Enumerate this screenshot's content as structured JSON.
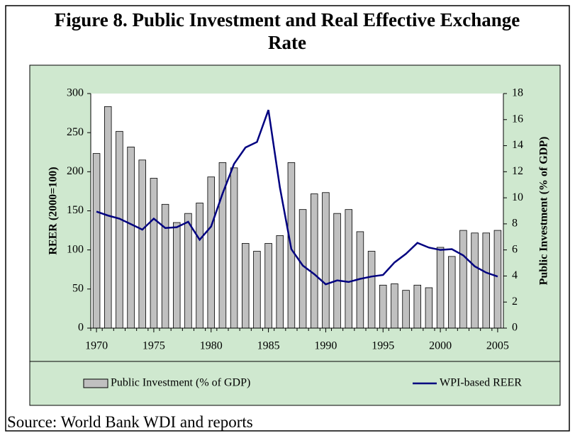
{
  "chart_data": {
    "type": "bar-line",
    "title": "Figure 8. Public Investment and Real Effective Exchange Rate",
    "ylabel": "REER (2000=100)",
    "y2label": "Public Investment (% of GDP)",
    "source": "Source: World Bank WDI and reports",
    "x": [
      1970,
      1971,
      1972,
      1973,
      1974,
      1975,
      1976,
      1977,
      1978,
      1979,
      1980,
      1981,
      1982,
      1983,
      1984,
      1985,
      1986,
      1987,
      1988,
      1989,
      1990,
      1991,
      1992,
      1993,
      1994,
      1995,
      1996,
      1997,
      1998,
      1999,
      2000,
      2001,
      2002,
      2003,
      2004,
      2005
    ],
    "xlim": [
      1969.5,
      2005.5
    ],
    "xticks": [
      1970,
      1975,
      1980,
      1985,
      1990,
      1995,
      2000,
      2005
    ],
    "ylim": [
      0,
      300
    ],
    "yticks": [
      0,
      50,
      100,
      150,
      200,
      250,
      300
    ],
    "y2lim": [
      0,
      18
    ],
    "y2ticks": [
      0,
      2,
      4,
      6,
      8,
      10,
      12,
      14,
      16,
      18
    ],
    "legend": "bottom",
    "grid": false,
    "series": [
      {
        "name": "Public Investment (% of GDP)",
        "kind": "bar",
        "axis": "y2",
        "color": "#c0c0c0",
        "values": [
          13.4,
          17.0,
          15.1,
          13.9,
          12.9,
          11.5,
          9.5,
          8.1,
          8.8,
          9.6,
          11.6,
          12.7,
          12.3,
          6.5,
          5.9,
          6.5,
          7.1,
          12.7,
          9.1,
          10.3,
          10.4,
          8.8,
          9.1,
          7.4,
          5.9,
          3.3,
          3.4,
          2.9,
          3.3,
          3.1,
          6.2,
          5.5,
          7.5,
          7.3,
          7.3,
          7.5
        ]
      },
      {
        "name": "WPI-based REER",
        "kind": "line",
        "axis": "y",
        "color": "#000080",
        "values": [
          149,
          144,
          140,
          133,
          126,
          140,
          128,
          129,
          136,
          113,
          130,
          172,
          210,
          231,
          238,
          279,
          180,
          101,
          80,
          69,
          56,
          61,
          59,
          63,
          66,
          68,
          84,
          95,
          109,
          103,
          100,
          101,
          93,
          79,
          71,
          66
        ]
      }
    ]
  }
}
